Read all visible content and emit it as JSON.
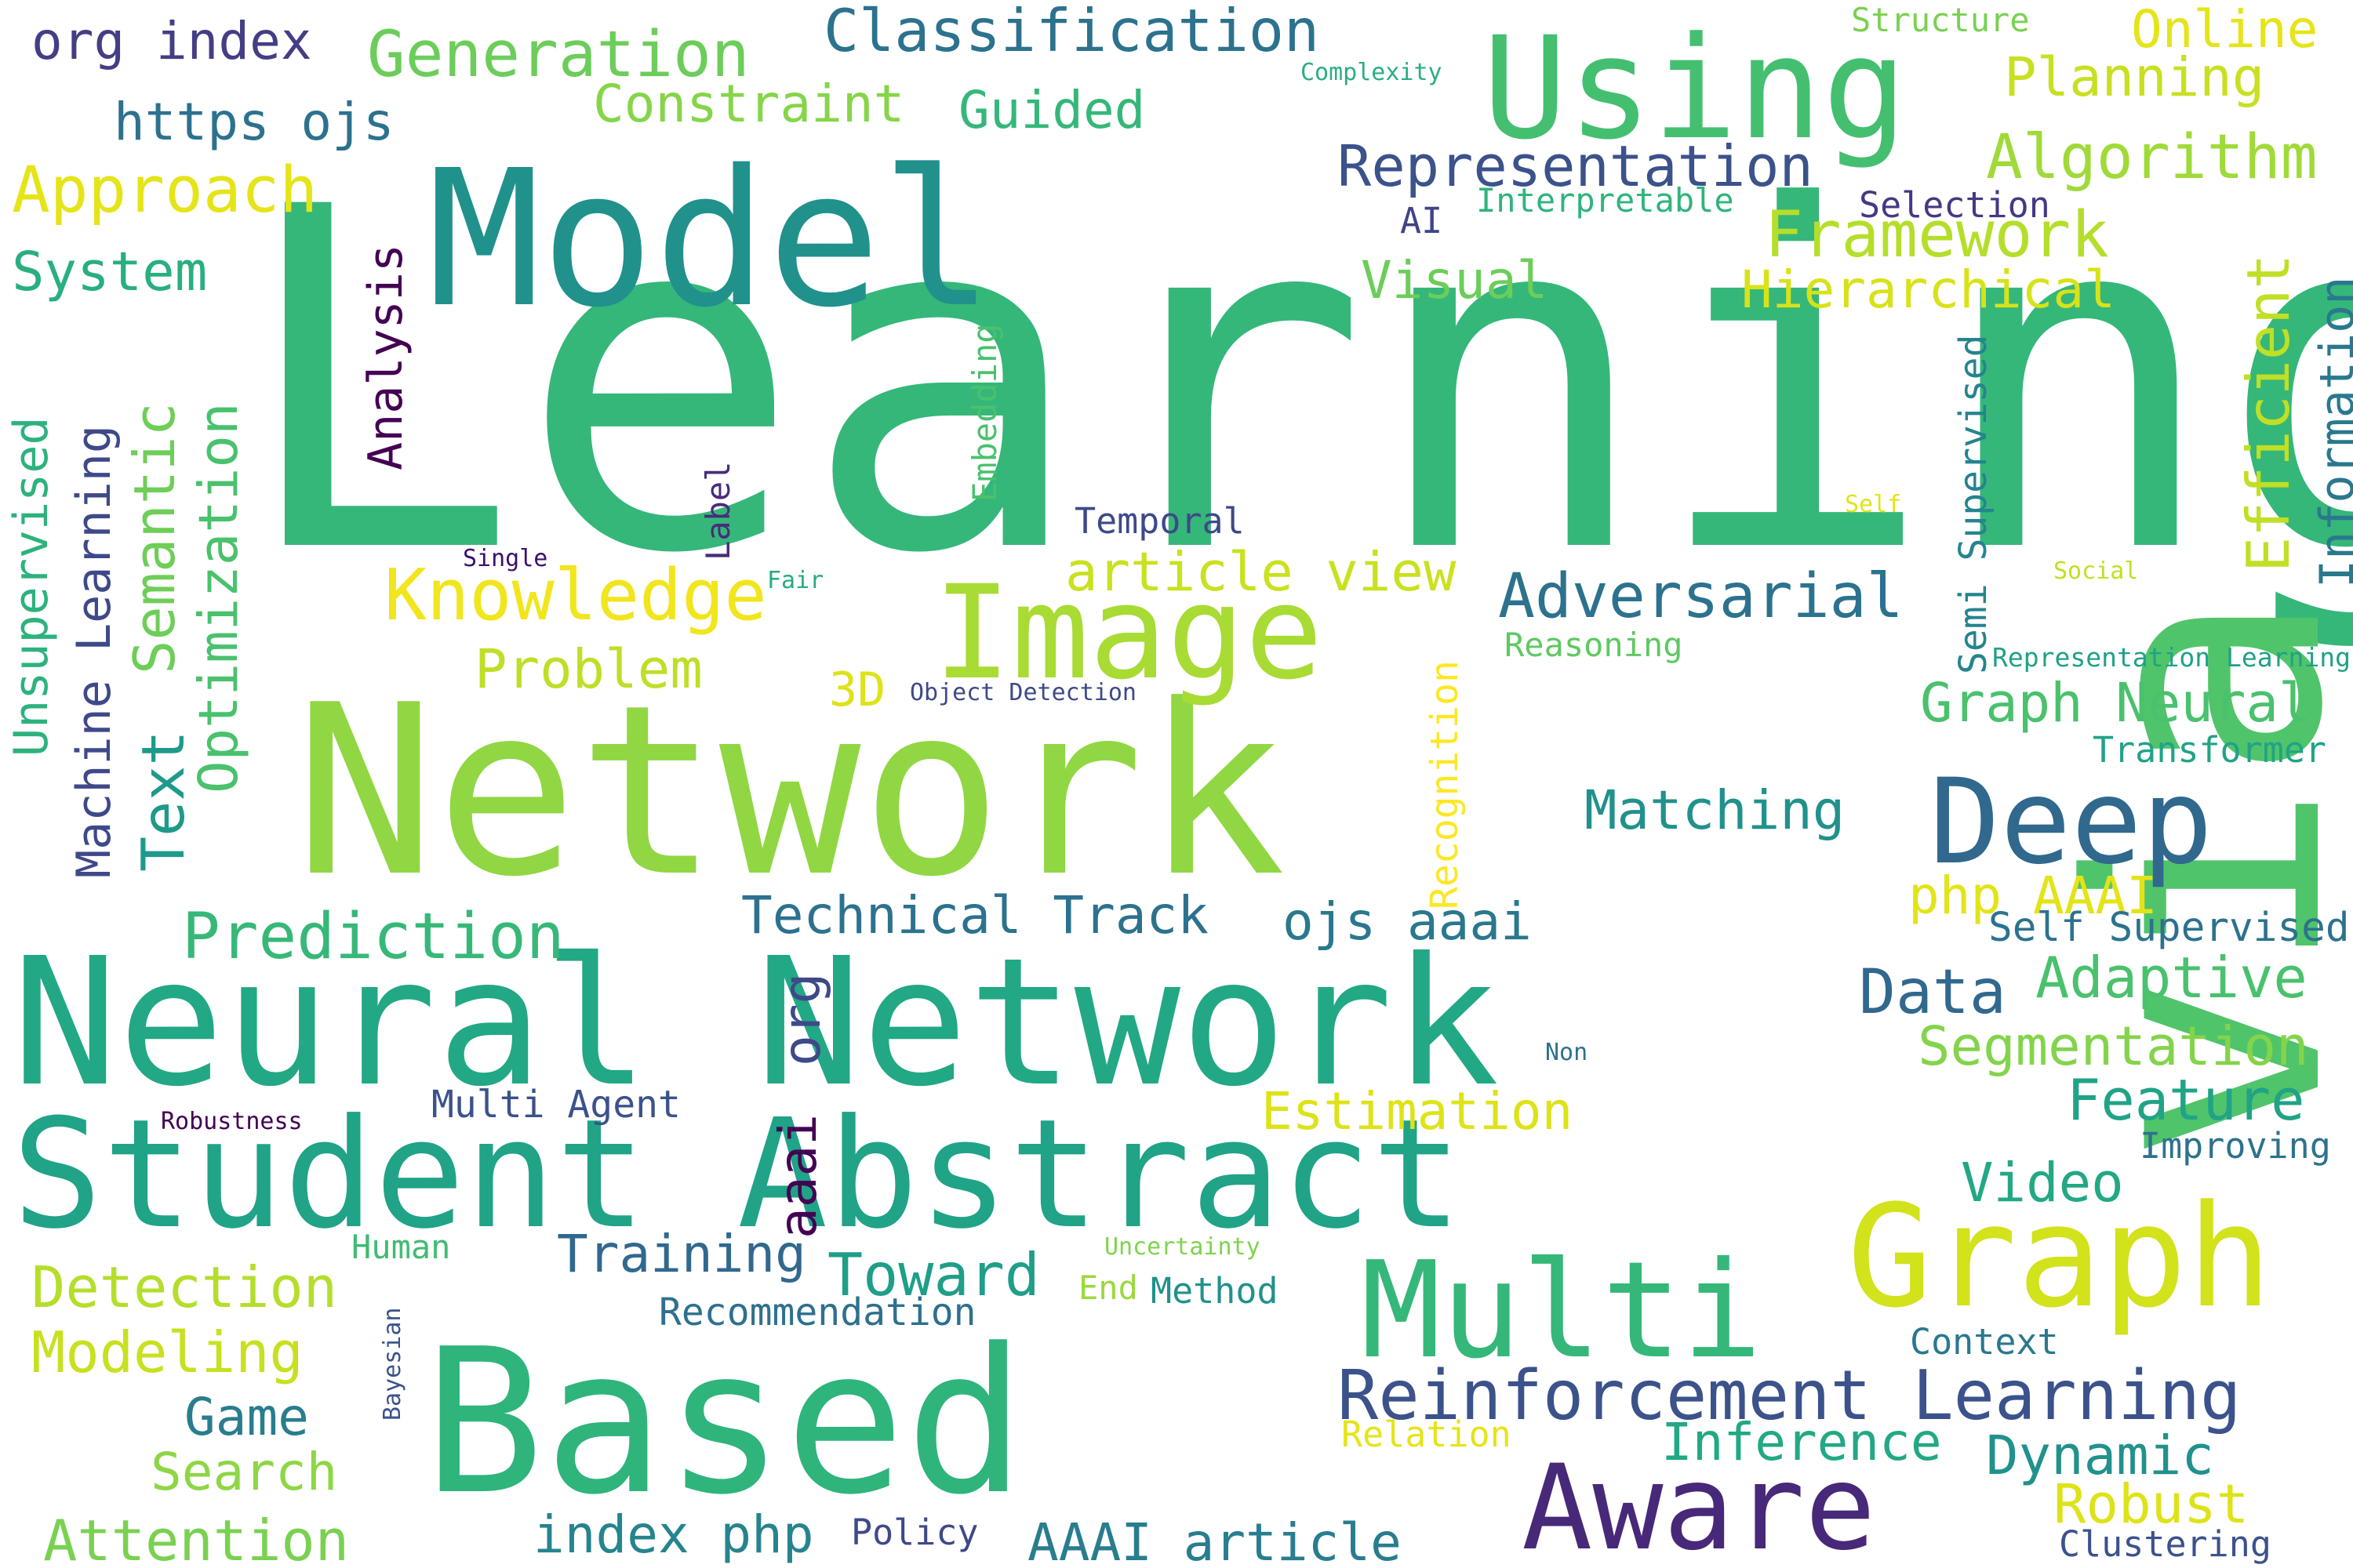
{
  "word_cloud": {
    "palette": "viridis",
    "background": "#ffffff",
    "words": [
      {
        "text": "Learning",
        "color": "#35b779"
      },
      {
        "text": "Network",
        "color": "#90d743"
      },
      {
        "text": "Model",
        "color": "#21918c"
      },
      {
        "text": "Neural Network",
        "color": "#22a884"
      },
      {
        "text": "Based",
        "color": "#2fb47c"
      },
      {
        "text": "via",
        "color": "#50c46a"
      },
      {
        "text": "Student Abstract",
        "color": "#20a386"
      },
      {
        "text": "Using",
        "color": "#44bf70"
      },
      {
        "text": "Image",
        "color": "#a8db34"
      },
      {
        "text": "Multi",
        "color": "#35b779"
      },
      {
        "text": "Graph",
        "color": "#d2e21b"
      },
      {
        "text": "Aware",
        "color": "#482878"
      },
      {
        "text": "Deep",
        "color": "#31688e"
      },
      {
        "text": "Reinforcement Learning",
        "color": "#3b528b"
      },
      {
        "text": "Classification",
        "color": "#2c728e"
      },
      {
        "text": "Generation",
        "color": "#6ccd5a"
      },
      {
        "text": "org index",
        "color": "#433e85"
      },
      {
        "text": "Constraint",
        "color": "#86d549"
      },
      {
        "text": "Guided",
        "color": "#35b779"
      },
      {
        "text": "https ojs",
        "color": "#2c728e"
      },
      {
        "text": "Approach",
        "color": "#e5e419"
      },
      {
        "text": "System",
        "color": "#29af7f"
      },
      {
        "text": "Representation",
        "color": "#3b528b"
      },
      {
        "text": "Framework",
        "color": "#b5de2b"
      },
      {
        "text": "Hierarchical",
        "color": "#d8e219"
      },
      {
        "text": "Visual",
        "color": "#6ccd5a"
      },
      {
        "text": "Algorithm",
        "color": "#a0da39"
      },
      {
        "text": "Planning",
        "color": "#c8e020"
      },
      {
        "text": "Online",
        "color": "#e5e419"
      },
      {
        "text": "Structure",
        "color": "#7ad151"
      },
      {
        "text": "Complexity",
        "color": "#29af7f"
      },
      {
        "text": "Interpretable",
        "color": "#2fb47c"
      },
      {
        "text": "AI",
        "color": "#414487"
      },
      {
        "text": "Selection",
        "color": "#443983"
      },
      {
        "text": "Efficient",
        "color": "#c0df25"
      },
      {
        "text": "Information",
        "color": "#2a788e"
      },
      {
        "text": "Knowledge",
        "color": "#f1e51d"
      },
      {
        "text": "article view",
        "color": "#cae11f"
      },
      {
        "text": "Adversarial",
        "color": "#2c728e"
      },
      {
        "text": "Problem",
        "color": "#bddf26"
      },
      {
        "text": "3D",
        "color": "#dde318"
      },
      {
        "text": "Object Detection",
        "color": "#3e4989"
      },
      {
        "text": "Reasoning",
        "color": "#5ec962"
      },
      {
        "text": "Graph Neural",
        "color": "#4ac16d"
      },
      {
        "text": "Transformer",
        "color": "#20a386"
      },
      {
        "text": "Representation Learning",
        "color": "#1fa187"
      },
      {
        "text": "Social",
        "color": "#c2df23"
      },
      {
        "text": "Self",
        "color": "#e2e418"
      },
      {
        "text": "Semi Supervised",
        "color": "#25848e"
      },
      {
        "text": "Matching",
        "color": "#21918c"
      },
      {
        "text": "Temporal",
        "color": "#3e4989"
      },
      {
        "text": "Single",
        "color": "#3b0f70"
      },
      {
        "text": "Fair",
        "color": "#25ab82"
      },
      {
        "text": "Label",
        "color": "#472d7b"
      },
      {
        "text": "Embedding",
        "color": "#4ac16d"
      },
      {
        "text": "Analysis",
        "color": "#440154"
      },
      {
        "text": "Optimization",
        "color": "#4ac16d"
      },
      {
        "text": "Semantic",
        "color": "#6ece58"
      },
      {
        "text": "Text",
        "color": "#1f9a8a"
      },
      {
        "text": "Machine Learning",
        "color": "#3e4989"
      },
      {
        "text": "Unsupervised",
        "color": "#2db27d"
      },
      {
        "text": "Recognition",
        "color": "#fde725"
      },
      {
        "text": "php AAAI",
        "color": "#e2e418"
      },
      {
        "text": "Self Supervised",
        "color": "#2c728e"
      },
      {
        "text": "Prediction",
        "color": "#37b878"
      },
      {
        "text": "Technical Track",
        "color": "#2c728e"
      },
      {
        "text": "ojs aaai",
        "color": "#2a788e"
      },
      {
        "text": "Data",
        "color": "#31688e"
      },
      {
        "text": "Adaptive",
        "color": "#4ac16d"
      },
      {
        "text": "Segmentation",
        "color": "#84d44b"
      },
      {
        "text": "org",
        "color": "#3e4989"
      },
      {
        "text": "aaai",
        "color": "#440154"
      },
      {
        "text": "Non",
        "color": "#2c728e"
      },
      {
        "text": "Multi Agent",
        "color": "#3b528b"
      },
      {
        "text": "Robustness",
        "color": "#440154"
      },
      {
        "text": "Estimation",
        "color": "#dde318"
      },
      {
        "text": "Feature",
        "color": "#20a386"
      },
      {
        "text": "Improving",
        "color": "#2c728e"
      },
      {
        "text": "Video",
        "color": "#22a884"
      },
      {
        "text": "Human",
        "color": "#3fbc73"
      },
      {
        "text": "Uncertainty",
        "color": "#7fd34e"
      },
      {
        "text": "Detection",
        "color": "#b5de2b"
      },
      {
        "text": "Training",
        "color": "#31688e"
      },
      {
        "text": "Toward",
        "color": "#1f9e89"
      },
      {
        "text": "End",
        "color": "#9bd93c"
      },
      {
        "text": "Method",
        "color": "#21918c"
      },
      {
        "text": "Recommendation",
        "color": "#2d708e"
      },
      {
        "text": "Modeling",
        "color": "#c8e020"
      },
      {
        "text": "Bayesian",
        "color": "#3b528b"
      },
      {
        "text": "Game",
        "color": "#287d8e"
      },
      {
        "text": "Context",
        "color": "#2a788e"
      },
      {
        "text": "Relation",
        "color": "#e5e419"
      },
      {
        "text": "Inference",
        "color": "#22a884"
      },
      {
        "text": "Dynamic",
        "color": "#21918c"
      },
      {
        "text": "Robust",
        "color": "#dde318"
      },
      {
        "text": "Search",
        "color": "#8ed645"
      },
      {
        "text": "Attention",
        "color": "#7ad151"
      },
      {
        "text": "index php",
        "color": "#25848e"
      },
      {
        "text": "Policy",
        "color": "#3e4989"
      },
      {
        "text": "AAAI article",
        "color": "#287d8e"
      },
      {
        "text": "Clustering",
        "color": "#3b528b"
      }
    ]
  }
}
